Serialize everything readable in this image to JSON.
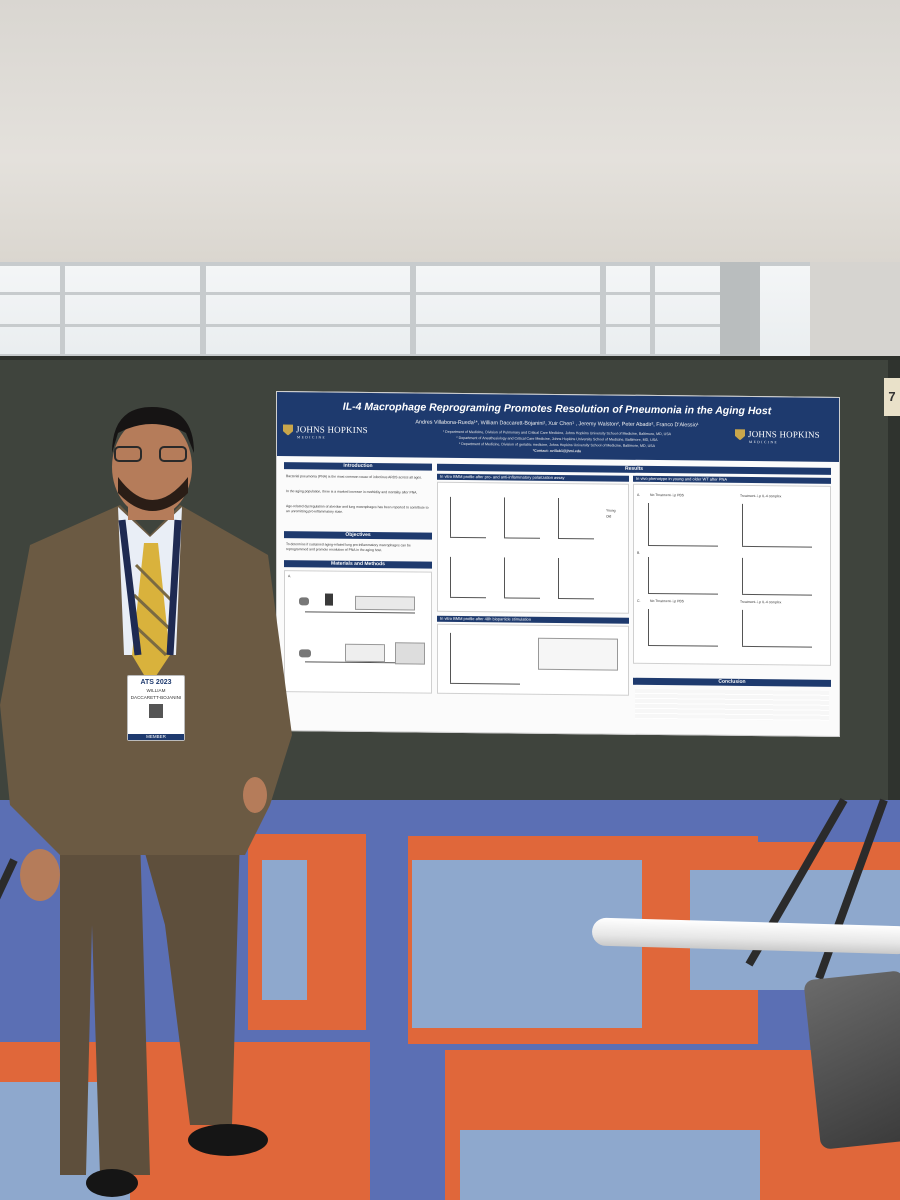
{
  "poster": {
    "title": "IL-4 Macrophage Reprograming Promotes Resolution of Pneumonia in the Aging Host",
    "authors": "Andres Villabona-Rueda¹*, William Daccarett-Bojanini¹, Xuir Chen¹ , Jeremy Walston², Peter Abadir², Franco D'Alessio¹",
    "affiliations": [
      "¹ Department of Medicine, Division of Pulmonary and Critical Care Medicine, Johns Hopkins University School of Medicine, Baltimore, MD, USA",
      "² Department of Anesthesiology and Critical Care Medicine, Johns Hopkins University School of Medicine, Baltimore, MD, USA",
      "³ Department of Medicine, Division of geriatric medicine, Johns Hopkins University School of Medicine, Baltimore, MD, USA",
      "*Contact: avillab1@jhmi.edu"
    ],
    "logo_text": "JOHNS HOPKINS",
    "logo_sub": "MEDICINE",
    "sections": {
      "introduction": "Introduction",
      "objectives": "Objectives",
      "materials_methods": "Materials and Methods",
      "results": "Results",
      "conclusion": "Conclusion"
    },
    "subheads": {
      "in_vitro_profile": "In vitro BMM profile after pro- and anti-inflammatory polarization assay",
      "in_vivo_phenotype": "In vivo phenotype in young and older WT after PNA",
      "in_vitro_48h": "In vitro BMM profile after 48h bioparticle stimulation"
    },
    "panel_labels": {
      "no_treatment_pbs": "No Treatment- i.p PBS",
      "treatment_il4": "Treatment- i.p IL-4 complex",
      "no_treatment_pbs_2": "No Treatment- i.p PBS",
      "treatment_il4_2": "Treatment- i.p IL-4 complex",
      "letter_a": "A.",
      "letter_b": "B.",
      "letter_c": "C."
    },
    "intro_text": [
      "Bacterial pneumonia (PNA) is the most common cause of infectious ARDS across all ages.",
      "In the aging population, there is a marked increase in morbidity and mortality after PNA.",
      "Age-related dysregulation of alveolar and lung macrophages has been reported to contribute to an unremitting pro-inflammatory state."
    ],
    "objectives_text": "To determine if sustained aging-related lung pro-inflammatory macrophages can be reprogrammed and promote resolution of PNA in the aging host.",
    "legend": [
      "Young",
      "Old"
    ]
  },
  "badge": {
    "event": "ATS 2023",
    "name_line1": "WILLIAM",
    "name_line2": "DACCARETT-BOJANINI",
    "role": "MEMBER"
  },
  "board_tag": "7",
  "colors": {
    "poster_header": "#1e3a6e",
    "board": "#3f443d",
    "carpet_blue": "#5b6fb4",
    "carpet_orange": "#e0673a",
    "suit": "#6b5a43"
  }
}
